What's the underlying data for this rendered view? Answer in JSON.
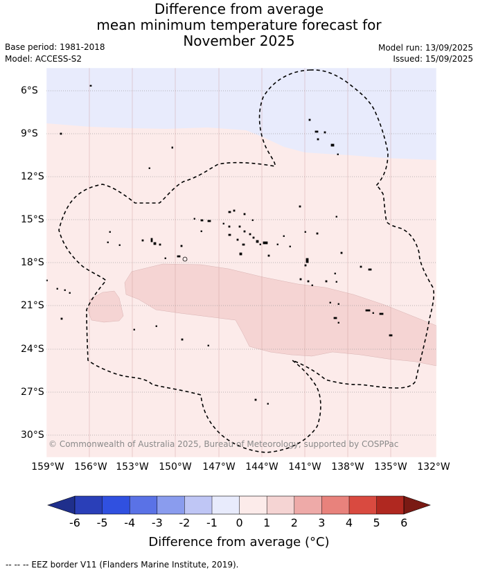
{
  "title_lines": [
    "Difference from average",
    "mean minimum temperature forecast for",
    "November 2025"
  ],
  "meta": {
    "base_period": "Base period: 1981-2018",
    "model": "Model: ACCESS-S2",
    "model_run": "Model run: 13/09/2025",
    "issued": "Issued: 15/09/2025"
  },
  "copyright": "© Commonwealth of Australia 2025, Bureau of Meteorology, supported by COSPPac",
  "lat_labels": [
    "6°S",
    "9°S",
    "12°S",
    "15°S",
    "18°S",
    "21°S",
    "24°S",
    "27°S",
    "30°S"
  ],
  "lon_labels": [
    "159°W",
    "156°W",
    "153°W",
    "150°W",
    "147°W",
    "144°W",
    "141°W",
    "138°W",
    "135°W",
    "132°W"
  ],
  "colorbar": {
    "label": "Difference from average (°C)",
    "ticks": [
      "-6",
      "-5",
      "-4",
      "-3",
      "-2",
      "-1",
      "0",
      "1",
      "2",
      "3",
      "4",
      "5",
      "6"
    ],
    "colors": [
      "#1f2f8c",
      "#2a3fb8",
      "#3050e0",
      "#5a72e6",
      "#8a9cee",
      "#bfc6f5",
      "#e8ebfc",
      "#fcebea",
      "#f5d4d3",
      "#eeaaa8",
      "#e8827c",
      "#d94a40",
      "#b02820",
      "#7a1a14"
    ]
  },
  "footer": "--  --  -- EEZ border V11 (Flanders Marine Institute, 2019)."
}
